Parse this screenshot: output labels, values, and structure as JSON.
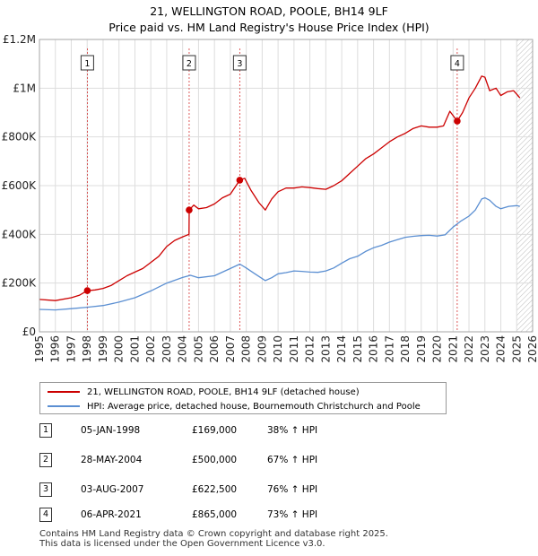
{
  "title_line1": "21, WELLINGTON ROAD, POOLE, BH14 9LF",
  "title_line2": "Price paid vs. HM Land Registry's House Price Index (HPI)",
  "colors": {
    "property": "#cc0000",
    "hpi": "#5b8fd2",
    "grid": "#dddddd",
    "plot_bg": "#ffffff",
    "marker_line": "#cc0000"
  },
  "chart_data": {
    "type": "line",
    "title": "Price paid vs. HM Land Registry's House Price Index (HPI)",
    "xlabel": "",
    "ylabel": "",
    "xlim": [
      1995,
      2026
    ],
    "ylim": [
      0,
      1200000
    ],
    "y_ticks": [
      0,
      200000,
      400000,
      600000,
      800000,
      1000000,
      1200000
    ],
    "y_tick_labels": [
      "£0",
      "£200K",
      "£400K",
      "£600K",
      "£800K",
      "£1M",
      "£1.2M"
    ],
    "x_ticks": [
      1995,
      1996,
      1997,
      1998,
      1999,
      2000,
      2001,
      2002,
      2003,
      2004,
      2005,
      2006,
      2007,
      2008,
      2009,
      2010,
      2011,
      2012,
      2013,
      2014,
      2015,
      2016,
      2017,
      2018,
      2019,
      2020,
      2021,
      2022,
      2023,
      2024,
      2025,
      2026
    ],
    "hatched_from": 2025.0,
    "series": [
      {
        "name": "21, WELLINGTON ROAD, POOLE, BH14 9LF (detached house)",
        "x": [
          1995.0,
          1996.0,
          1997.0,
          1997.5,
          1998.01,
          1998.5,
          1999.0,
          1999.5,
          2000.0,
          2000.5,
          2001.0,
          2001.5,
          2002.0,
          2002.5,
          2003.0,
          2003.5,
          2004.0,
          2004.4,
          2004.41,
          2004.7,
          2005.0,
          2005.5,
          2006.0,
          2006.5,
          2007.0,
          2007.59,
          2007.9,
          2008.3,
          2008.8,
          2009.2,
          2009.6,
          2010.0,
          2010.5,
          2011.0,
          2011.5,
          2012.0,
          2012.5,
          2013.0,
          2013.5,
          2014.0,
          2014.5,
          2015.0,
          2015.5,
          2016.0,
          2016.5,
          2017.0,
          2017.5,
          2018.0,
          2018.5,
          2019.0,
          2019.5,
          2020.0,
          2020.4,
          2020.8,
          2021.26,
          2021.6,
          2022.0,
          2022.4,
          2022.8,
          2023.0,
          2023.3,
          2023.7,
          2024.0,
          2024.4,
          2024.8,
          2025.0,
          2025.2
        ],
        "values": [
          133000,
          128000,
          140000,
          150000,
          169000,
          172000,
          178000,
          190000,
          210000,
          230000,
          245000,
          260000,
          285000,
          310000,
          350000,
          375000,
          390000,
          400000,
          500000,
          520000,
          505000,
          510000,
          525000,
          550000,
          565000,
          622500,
          630000,
          580000,
          530000,
          500000,
          545000,
          575000,
          590000,
          590000,
          595000,
          592000,
          588000,
          585000,
          600000,
          620000,
          650000,
          680000,
          710000,
          730000,
          755000,
          780000,
          800000,
          815000,
          835000,
          845000,
          840000,
          840000,
          845000,
          905000,
          865000,
          900000,
          960000,
          1000000,
          1050000,
          1045000,
          990000,
          1000000,
          970000,
          985000,
          990000,
          975000,
          960000
        ]
      },
      {
        "name": "HPI: Average price, detached house, Bournemouth Christchurch and Poole",
        "x": [
          1995.0,
          1996.0,
          1997.0,
          1998.0,
          1999.0,
          2000.0,
          2001.0,
          2002.0,
          2003.0,
          2004.0,
          2004.5,
          2005.0,
          2006.0,
          2007.0,
          2007.6,
          2008.0,
          2008.5,
          2009.2,
          2009.6,
          2010.0,
          2010.5,
          2011.0,
          2011.5,
          2012.0,
          2012.5,
          2013.0,
          2013.5,
          2014.0,
          2014.5,
          2015.0,
          2015.5,
          2016.0,
          2016.5,
          2017.0,
          2017.5,
          2018.0,
          2018.5,
          2019.0,
          2019.5,
          2020.0,
          2020.5,
          2021.0,
          2021.5,
          2022.0,
          2022.4,
          2022.8,
          2023.0,
          2023.3,
          2023.7,
          2024.0,
          2024.5,
          2025.0,
          2025.2
        ],
        "values": [
          92000,
          90000,
          95000,
          101000,
          108000,
          122000,
          140000,
          168000,
          200000,
          223000,
          232000,
          222000,
          230000,
          260000,
          278000,
          262000,
          240000,
          210000,
          222000,
          238000,
          243000,
          250000,
          248000,
          245000,
          244000,
          250000,
          262000,
          282000,
          300000,
          310000,
          330000,
          345000,
          355000,
          368000,
          378000,
          388000,
          392000,
          395000,
          396000,
          393000,
          398000,
          430000,
          455000,
          475000,
          500000,
          545000,
          550000,
          540000,
          515000,
          505000,
          515000,
          518000,
          515000
        ]
      }
    ],
    "markers": [
      {
        "label": "1",
        "x": 1998.01,
        "y": 169000
      },
      {
        "label": "2",
        "x": 2004.41,
        "y": 500000
      },
      {
        "label": "3",
        "x": 2007.59,
        "y": 622500
      },
      {
        "label": "4",
        "x": 2021.26,
        "y": 865000
      }
    ]
  },
  "legend": {
    "property_label": "21, WELLINGTON ROAD, POOLE, BH14 9LF (detached house)",
    "hpi_label": "HPI: Average price, detached house, Bournemouth Christchurch and Poole"
  },
  "sales": [
    {
      "num": "1",
      "date": "05-JAN-1998",
      "price": "£169,000",
      "hpi": "38% ↑ HPI"
    },
    {
      "num": "2",
      "date": "28-MAY-2004",
      "price": "£500,000",
      "hpi": "67% ↑ HPI"
    },
    {
      "num": "3",
      "date": "03-AUG-2007",
      "price": "£622,500",
      "hpi": "76% ↑ HPI"
    },
    {
      "num": "4",
      "date": "06-APR-2021",
      "price": "£865,000",
      "hpi": "73% ↑ HPI"
    }
  ],
  "footer": {
    "line1": "Contains HM Land Registry data © Crown copyright and database right 2025.",
    "line2": "This data is licensed under the Open Government Licence v3.0."
  }
}
